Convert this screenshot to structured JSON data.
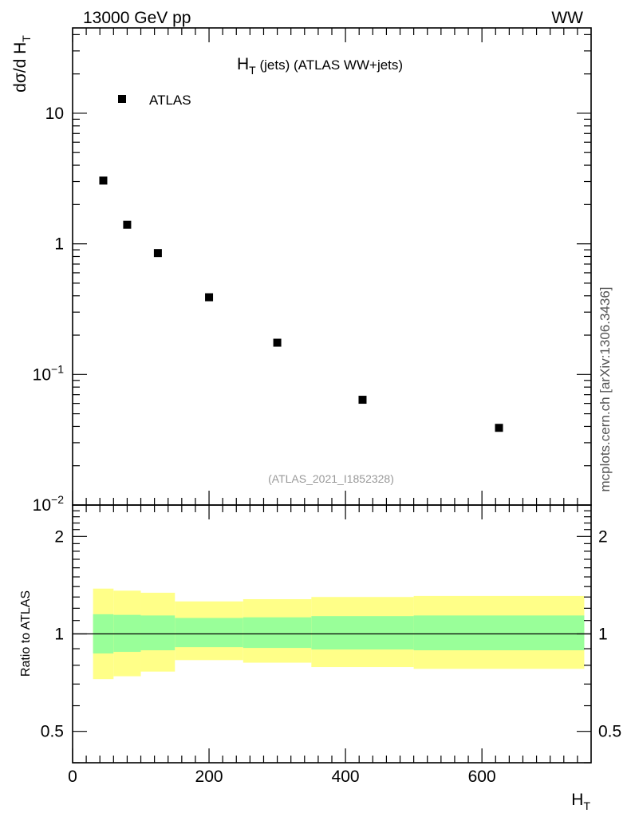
{
  "header": {
    "left": "13000 GeV pp",
    "right": "WW"
  },
  "side_label": "mcplots.cern.ch [arXiv:1306.3436]",
  "chart_data": [
    {
      "type": "scatter",
      "title_main": "H",
      "title_sub": "T",
      "title_rest": " (jets) (ATLAS WW+jets)",
      "watermark": "(ATLAS_2021_I1852328)",
      "ylabel_main": "dσ/d H",
      "ylabel_sub": "T",
      "yscale": "log",
      "ylim": [
        0.01,
        45
      ],
      "xlim": [
        0,
        760
      ],
      "legend": {
        "label": "ATLAS",
        "position": "top-left",
        "marker": "square"
      },
      "y_ticks": [
        {
          "value": 10,
          "label": "10"
        },
        {
          "value": 1,
          "label": "1"
        },
        {
          "value": 0.1,
          "base": "10",
          "exp": "−1"
        },
        {
          "value": 0.01,
          "base": "10",
          "exp": "−2"
        }
      ],
      "series": [
        {
          "name": "ATLAS",
          "x": [
            45,
            80,
            125,
            200,
            300,
            425,
            625
          ],
          "y": [
            3.05,
            1.4,
            0.85,
            0.39,
            0.175,
            0.064,
            0.039
          ]
        }
      ]
    },
    {
      "type": "area",
      "ylabel": "Ratio to ATLAS",
      "xlabel_main": "H",
      "xlabel_sub": "T",
      "yscale": "log",
      "ylim": [
        0.4,
        2.5
      ],
      "xlim": [
        0,
        760
      ],
      "reference_line": 1,
      "y_ticks_left": [
        "2",
        "1",
        "0.5"
      ],
      "y_ticks_right": [
        "2",
        "1",
        "0.5"
      ],
      "y_tick_values": [
        2,
        1,
        0.5
      ],
      "x_ticks": [
        "0",
        "200",
        "400",
        "600"
      ],
      "x_tick_values": [
        0,
        200,
        400,
        600
      ],
      "bands": {
        "bin_edges": [
          30,
          60,
          100,
          150,
          250,
          350,
          500,
          750
        ],
        "inner_color": "#99ff99",
        "outer_color": "#ffff88",
        "inner_low": [
          0.87,
          0.88,
          0.89,
          0.91,
          0.905,
          0.895,
          0.89
        ],
        "inner_high": [
          1.15,
          1.145,
          1.14,
          1.12,
          1.125,
          1.135,
          1.14
        ],
        "outer_low": [
          0.725,
          0.74,
          0.765,
          0.83,
          0.815,
          0.79,
          0.78
        ],
        "outer_high": [
          1.38,
          1.36,
          1.34,
          1.26,
          1.28,
          1.3,
          1.31
        ]
      }
    }
  ]
}
